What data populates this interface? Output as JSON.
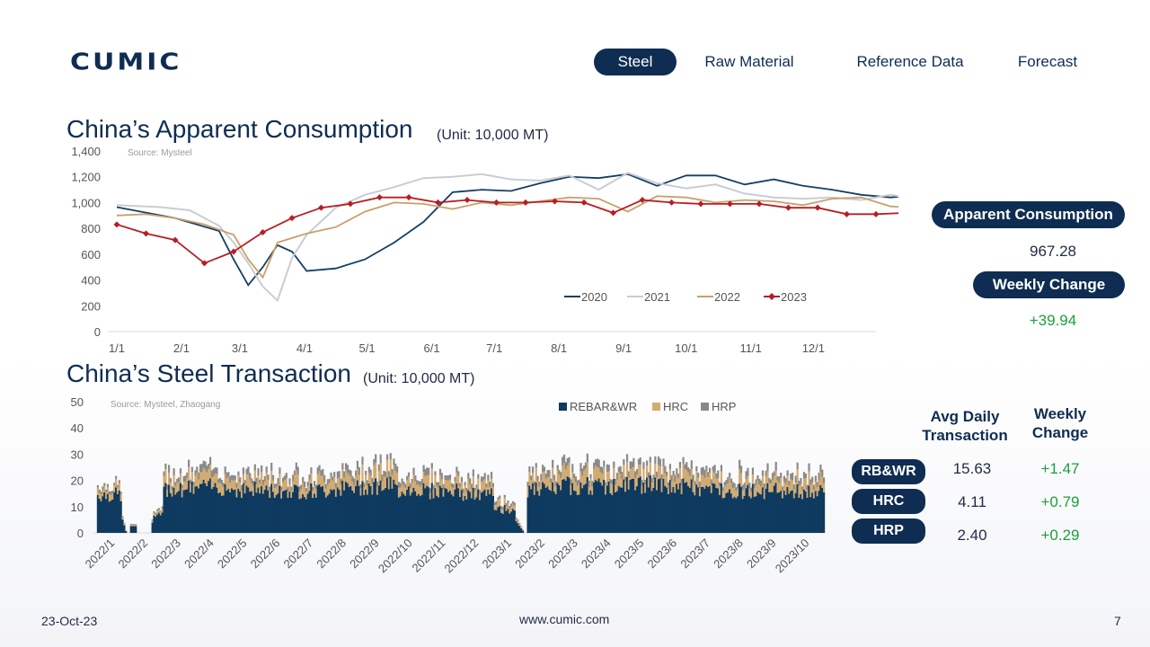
{
  "logo": {
    "text": "CUMIC"
  },
  "nav": {
    "tabs": [
      "Steel",
      "Raw Material",
      "Reference Data",
      "Forecast"
    ],
    "active": "Steel"
  },
  "section1": {
    "title": "China’s Apparent Consumption",
    "unit": "(Unit: 10,000 MT)"
  },
  "section2": {
    "title": "China’s Steel Transaction",
    "unit": "(Unit: 10,000 MT)"
  },
  "consumption_panel": {
    "label": "Apparent Consumption",
    "value": "967.28",
    "change_label": "Weekly Change",
    "change_value": "+39.94"
  },
  "transaction_panel": {
    "col1": "Avg Daily Transaction",
    "col2": "Weekly Change",
    "rows": [
      {
        "name": "RB&WR",
        "avg": "15.63",
        "change": "+1.47"
      },
      {
        "name": "HRC",
        "avg": "4.11",
        "change": "+0.79"
      },
      {
        "name": "HRP",
        "avg": "2.40",
        "change": "+0.29"
      }
    ]
  },
  "footer": {
    "date": "23-Oct-23",
    "url": "www.cumic.com",
    "page": "7"
  },
  "colors": {
    "navy": "#0f2d52",
    "c2020": "#163e64",
    "c2021": "#c9cdd3",
    "c2022": "#c9a06a",
    "c2023": "#b81d24",
    "rebar": "#0f3a5f",
    "hrc": "#d2ab73",
    "hrp": "#8a8a8a",
    "green": "#1e9e3e"
  },
  "chart_data": [
    {
      "type": "line",
      "source": "Source: Mysteel",
      "ylim": [
        0,
        1400
      ],
      "yticks": [
        "0",
        "200",
        "400",
        "600",
        "800",
        "1,000",
        "1,200",
        "1,400"
      ],
      "ytick_values": [
        0,
        200,
        400,
        600,
        800,
        1000,
        1200,
        1400
      ],
      "xticks": [
        "1/1",
        "2/1",
        "3/1",
        "4/1",
        "5/1",
        "6/1",
        "7/1",
        "8/1",
        "9/1",
        "10/1",
        "11/1",
        "12/1"
      ],
      "legend_position": "bottom-right",
      "series": [
        {
          "name": "2020",
          "points": [
            [
              0,
              965
            ],
            [
              4,
              880
            ],
            [
              7,
              780
            ],
            [
              8,
              560
            ],
            [
              9,
              360
            ],
            [
              10,
              500
            ],
            [
              11,
              670
            ],
            [
              12,
              620
            ],
            [
              13,
              470
            ],
            [
              15,
              490
            ],
            [
              17,
              560
            ],
            [
              19,
              690
            ],
            [
              21,
              850
            ],
            [
              23,
              1080
            ],
            [
              25,
              1100
            ],
            [
              27,
              1090
            ],
            [
              29,
              1150
            ],
            [
              31,
              1200
            ],
            [
              33,
              1190
            ],
            [
              35,
              1220
            ],
            [
              37,
              1130
            ],
            [
              39,
              1210
            ],
            [
              41,
              1210
            ],
            [
              43,
              1140
            ],
            [
              45,
              1180
            ],
            [
              47,
              1130
            ],
            [
              49,
              1100
            ],
            [
              51,
              1060
            ],
            [
              53,
              1040
            ],
            [
              55,
              1060
            ],
            [
              57,
              1060
            ],
            [
              59,
              1050
            ],
            [
              61,
              1070
            ],
            [
              63,
              1110
            ],
            [
              65,
              1100
            ],
            [
              67,
              1090
            ],
            [
              69,
              1080
            ],
            [
              71,
              1100
            ],
            [
              73,
              1100
            ],
            [
              75,
              1110
            ],
            [
              77,
              1140
            ],
            [
              79,
              1170
            ],
            [
              80,
              1200
            ],
            [
              81,
              960
            ],
            [
              82,
              900
            ],
            [
              83,
              1020
            ],
            [
              84,
              1200
            ],
            [
              86,
              1160
            ],
            [
              88,
              1180
            ],
            [
              89,
              1180
            ],
            [
              91,
              1220
            ],
            [
              93,
              1140
            ],
            [
              95,
              1110
            ],
            [
              96,
              1110
            ],
            [
              97,
              1130
            ]
          ]
        },
        {
          "name": "2021",
          "points": [
            [
              0,
              980
            ],
            [
              3,
              965
            ],
            [
              5,
              940
            ],
            [
              7,
              820
            ],
            [
              8,
              690
            ],
            [
              9,
              530
            ],
            [
              10,
              350
            ],
            [
              11,
              240
            ],
            [
              12,
              570
            ],
            [
              13,
              750
            ],
            [
              15,
              960
            ],
            [
              17,
              1060
            ],
            [
              19,
              1120
            ],
            [
              21,
              1190
            ],
            [
              23,
              1200
            ],
            [
              25,
              1220
            ],
            [
              27,
              1180
            ],
            [
              29,
              1170
            ],
            [
              31,
              1210
            ],
            [
              33,
              1100
            ],
            [
              35,
              1230
            ],
            [
              37,
              1150
            ],
            [
              39,
              1110
            ],
            [
              41,
              1140
            ],
            [
              43,
              1070
            ],
            [
              45,
              1040
            ],
            [
              47,
              1030
            ],
            [
              49,
              1040
            ],
            [
              51,
              1020
            ],
            [
              53,
              1060
            ],
            [
              55,
              1020
            ],
            [
              57,
              1010
            ],
            [
              59,
              1000
            ],
            [
              61,
              1030
            ],
            [
              63,
              1020
            ],
            [
              65,
              1050
            ],
            [
              67,
              1060
            ],
            [
              69,
              1020
            ],
            [
              71,
              960
            ],
            [
              73,
              960
            ],
            [
              74,
              830
            ],
            [
              75,
              870
            ],
            [
              77,
              940
            ],
            [
              79,
              960
            ],
            [
              81,
              940
            ],
            [
              83,
              920
            ],
            [
              85,
              920
            ],
            [
              87,
              960
            ],
            [
              89,
              980
            ],
            [
              91,
              990
            ],
            [
              93,
              1000
            ],
            [
              94,
              990
            ],
            [
              95,
              960
            ],
            [
              96,
              920
            ]
          ]
        },
        {
          "name": "2022",
          "points": [
            [
              0,
              900
            ],
            [
              2,
              910
            ],
            [
              4,
              880
            ],
            [
              6,
              830
            ],
            [
              8,
              750
            ],
            [
              9,
              560
            ],
            [
              10,
              420
            ],
            [
              11,
              690
            ],
            [
              13,
              760
            ],
            [
              15,
              810
            ],
            [
              17,
              930
            ],
            [
              19,
              1000
            ],
            [
              21,
              990
            ],
            [
              23,
              950
            ],
            [
              25,
              1000
            ],
            [
              27,
              980
            ],
            [
              29,
              1010
            ],
            [
              31,
              1040
            ],
            [
              33,
              1030
            ],
            [
              35,
              930
            ],
            [
              37,
              1050
            ],
            [
              39,
              1040
            ],
            [
              41,
              1000
            ],
            [
              43,
              1020
            ],
            [
              45,
              1010
            ],
            [
              47,
              980
            ],
            [
              49,
              1030
            ],
            [
              51,
              1040
            ],
            [
              53,
              970
            ],
            [
              55,
              960
            ],
            [
              57,
              990
            ],
            [
              59,
              1000
            ],
            [
              61,
              950
            ],
            [
              63,
              960
            ],
            [
              65,
              960
            ],
            [
              67,
              940
            ],
            [
              69,
              940
            ],
            [
              71,
              980
            ],
            [
              73,
              1000
            ],
            [
              74,
              1040
            ],
            [
              75,
              980
            ],
            [
              77,
              850
            ],
            [
              79,
              910
            ],
            [
              81,
              1020
            ],
            [
              83,
              1020
            ],
            [
              85,
              1020
            ],
            [
              87,
              990
            ],
            [
              89,
              980
            ],
            [
              91,
              950
            ],
            [
              93,
              940
            ],
            [
              95,
              960
            ],
            [
              96,
              930
            ],
            [
              97,
              900
            ]
          ]
        },
        {
          "name": "2023",
          "points": [
            [
              0,
              830
            ],
            [
              2,
              760
            ],
            [
              4,
              710
            ],
            [
              6,
              530
            ],
            [
              8,
              620
            ],
            [
              10,
              770
            ],
            [
              12,
              880
            ],
            [
              14,
              960
            ],
            [
              16,
              990
            ],
            [
              18,
              1040
            ],
            [
              20,
              1040
            ],
            [
              22,
              1000
            ],
            [
              24,
              1020
            ],
            [
              26,
              1000
            ],
            [
              28,
              1000
            ],
            [
              30,
              1010
            ],
            [
              32,
              1000
            ],
            [
              34,
              920
            ],
            [
              36,
              1020
            ],
            [
              38,
              1000
            ],
            [
              40,
              990
            ],
            [
              42,
              990
            ],
            [
              44,
              990
            ],
            [
              46,
              960
            ],
            [
              48,
              960
            ],
            [
              50,
              910
            ],
            [
              52,
              910
            ],
            [
              54,
              920
            ],
            [
              56,
              950
            ],
            [
              58,
              940
            ],
            [
              60,
              900
            ],
            [
              62,
              900
            ],
            [
              64,
              950
            ],
            [
              66,
              950
            ],
            [
              68,
              940
            ],
            [
              70,
              940
            ],
            [
              72,
              950
            ],
            [
              74,
              970
            ],
            [
              76,
              960
            ],
            [
              78,
              830
            ],
            [
              80,
              920
            ],
            [
              82,
              960
            ]
          ]
        }
      ]
    },
    {
      "type": "bar",
      "stacked": true,
      "source": "Source: Mysteel, Zhaogang",
      "ylim": [
        0,
        50
      ],
      "yticks": [
        "0",
        "10",
        "20",
        "30",
        "40",
        "50"
      ],
      "ytick_values": [
        0,
        10,
        20,
        30,
        40,
        50
      ],
      "xticks": [
        "2022/1",
        "2022/2",
        "2022/3",
        "2022/4",
        "2022/5",
        "2022/6",
        "2022/7",
        "2022/8",
        "2022/9",
        "2022/10",
        "2022/11",
        "2022/12",
        "2023/1",
        "2023/2",
        "2023/3",
        "2023/4",
        "2023/5",
        "2023/6",
        "2023/7",
        "2023/8",
        "2023/9",
        "2023/10"
      ],
      "legend_position": "top",
      "series_names": [
        "REBAR&WR",
        "HRC",
        "HRP"
      ],
      "monthly_avg": [
        [
          14.5,
          2.6,
          1.2
        ],
        [
          6.5,
          1.2,
          0.6
        ],
        [
          17.0,
          3.8,
          2.2
        ],
        [
          17.5,
          4.0,
          2.3
        ],
        [
          16.5,
          3.8,
          2.2
        ],
        [
          16.0,
          3.6,
          2.1
        ],
        [
          16.0,
          3.8,
          2.2
        ],
        [
          17.0,
          4.0,
          2.3
        ],
        [
          18.0,
          4.6,
          2.5
        ],
        [
          16.5,
          3.8,
          2.1
        ],
        [
          16.0,
          3.6,
          2.0
        ],
        [
          14.5,
          3.2,
          1.8
        ],
        [
          9.0,
          2.0,
          1.2
        ],
        [
          16.5,
          3.8,
          2.2
        ],
        [
          18.0,
          4.3,
          2.4
        ],
        [
          17.5,
          4.1,
          2.3
        ],
        [
          18.5,
          4.3,
          2.4
        ],
        [
          17.5,
          4.1,
          2.3
        ],
        [
          16.5,
          3.9,
          2.3
        ],
        [
          16.0,
          3.8,
          2.2
        ],
        [
          16.0,
          3.9,
          2.3
        ],
        [
          15.5,
          4.0,
          2.3
        ]
      ]
    }
  ]
}
